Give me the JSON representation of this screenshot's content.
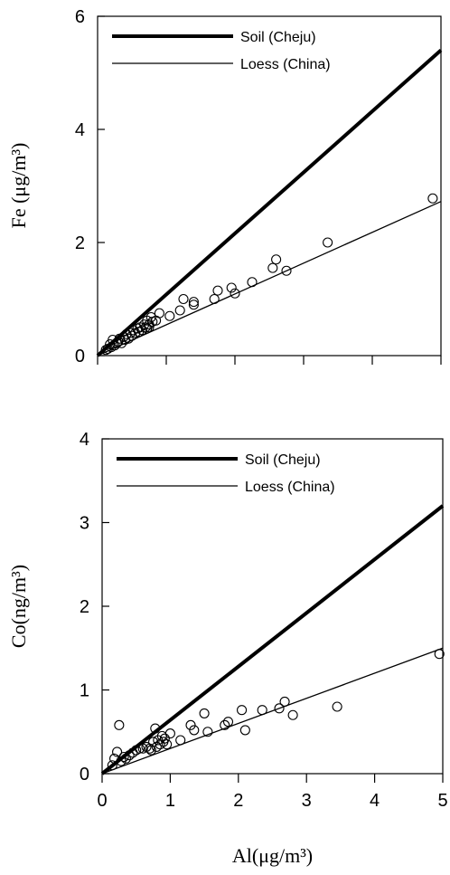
{
  "chart_data": [
    {
      "type": "scatter",
      "ylabel": "Fe (μg/m³)",
      "xlabel": "",
      "xlim": [
        0,
        5
      ],
      "ylim": [
        0,
        6
      ],
      "xticks": [
        "0",
        "1",
        "2",
        "3",
        "4",
        "5"
      ],
      "yticks": [
        "0",
        "2",
        "4",
        "6"
      ],
      "show_x_tick_labels": false,
      "legend_position": "top-left",
      "grid": false,
      "lines": [
        {
          "name": "Soil (Cheju)",
          "slope": 1.08,
          "weight": "thick"
        },
        {
          "name": "Loess (China)",
          "slope": 0.545,
          "weight": "thin"
        }
      ],
      "points": [
        [
          0.12,
          0.1
        ],
        [
          0.15,
          0.12
        ],
        [
          0.18,
          0.2
        ],
        [
          0.2,
          0.15
        ],
        [
          0.22,
          0.28
        ],
        [
          0.25,
          0.18
        ],
        [
          0.28,
          0.22
        ],
        [
          0.3,
          0.25
        ],
        [
          0.32,
          0.3
        ],
        [
          0.35,
          0.22
        ],
        [
          0.38,
          0.33
        ],
        [
          0.4,
          0.28
        ],
        [
          0.42,
          0.38
        ],
        [
          0.45,
          0.3
        ],
        [
          0.48,
          0.4
        ],
        [
          0.5,
          0.35
        ],
        [
          0.52,
          0.45
        ],
        [
          0.55,
          0.4
        ],
        [
          0.58,
          0.48
        ],
        [
          0.6,
          0.42
        ],
        [
          0.62,
          0.5
        ],
        [
          0.65,
          0.45
        ],
        [
          0.68,
          0.55
        ],
        [
          0.7,
          0.5
        ],
        [
          0.72,
          0.62
        ],
        [
          0.75,
          0.55
        ],
        [
          0.78,
          0.68
        ],
        [
          0.8,
          0.6
        ],
        [
          0.72,
          0.48
        ],
        [
          0.75,
          0.5
        ],
        [
          0.85,
          0.62
        ],
        [
          0.9,
          0.75
        ],
        [
          1.05,
          0.7
        ],
        [
          1.2,
          0.8
        ],
        [
          1.25,
          1.0
        ],
        [
          1.4,
          0.9
        ],
        [
          1.4,
          0.95
        ],
        [
          1.7,
          1.0
        ],
        [
          1.75,
          1.15
        ],
        [
          1.95,
          1.2
        ],
        [
          2.0,
          1.1
        ],
        [
          2.25,
          1.3
        ],
        [
          2.55,
          1.55
        ],
        [
          2.6,
          1.7
        ],
        [
          2.75,
          1.5
        ],
        [
          3.35,
          2.0
        ],
        [
          4.88,
          2.78
        ]
      ]
    },
    {
      "type": "scatter",
      "ylabel": "Co(ng/m³)",
      "xlabel": "Al(μg/m³)",
      "xlim": [
        0,
        5
      ],
      "ylim": [
        0,
        4
      ],
      "xticks": [
        "0",
        "1",
        "2",
        "3",
        "4",
        "5"
      ],
      "yticks": [
        "0",
        "1",
        "2",
        "3",
        "4"
      ],
      "show_x_tick_labels": true,
      "legend_position": "top-left",
      "grid": false,
      "lines": [
        {
          "name": "Soil (Cheju)",
          "slope": 0.64,
          "weight": "thick"
        },
        {
          "name": "Loess (China)",
          "slope": 0.3,
          "weight": "thin"
        }
      ],
      "points": [
        [
          0.15,
          0.1
        ],
        [
          0.18,
          0.18
        ],
        [
          0.22,
          0.26
        ],
        [
          0.25,
          0.58
        ],
        [
          0.28,
          0.15
        ],
        [
          0.32,
          0.2
        ],
        [
          0.35,
          0.18
        ],
        [
          0.4,
          0.22
        ],
        [
          0.45,
          0.25
        ],
        [
          0.5,
          0.28
        ],
        [
          0.55,
          0.3
        ],
        [
          0.6,
          0.3
        ],
        [
          0.65,
          0.32
        ],
        [
          0.7,
          0.3
        ],
        [
          0.72,
          0.28
        ],
        [
          0.75,
          0.38
        ],
        [
          0.78,
          0.54
        ],
        [
          0.8,
          0.32
        ],
        [
          0.82,
          0.4
        ],
        [
          0.85,
          0.35
        ],
        [
          0.88,
          0.45
        ],
        [
          0.9,
          0.38
        ],
        [
          0.92,
          0.42
        ],
        [
          0.95,
          0.35
        ],
        [
          1.0,
          0.48
        ],
        [
          1.15,
          0.4
        ],
        [
          1.3,
          0.58
        ],
        [
          1.35,
          0.52
        ],
        [
          1.5,
          0.72
        ],
        [
          1.55,
          0.5
        ],
        [
          1.8,
          0.58
        ],
        [
          1.85,
          0.62
        ],
        [
          2.05,
          0.76
        ],
        [
          2.1,
          0.52
        ],
        [
          2.35,
          0.76
        ],
        [
          2.6,
          0.78
        ],
        [
          2.68,
          0.86
        ],
        [
          2.8,
          0.7
        ],
        [
          3.45,
          0.8
        ],
        [
          4.95,
          1.43
        ]
      ]
    }
  ]
}
